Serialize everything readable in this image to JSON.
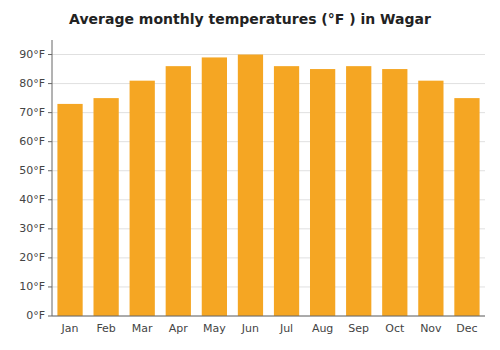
{
  "chart_data": {
    "type": "bar",
    "title": "Average monthly temperatures (°F ) in Wagar",
    "categories": [
      "Jan",
      "Feb",
      "Mar",
      "Apr",
      "May",
      "Jun",
      "Jul",
      "Aug",
      "Sep",
      "Oct",
      "Nov",
      "Dec"
    ],
    "values": [
      73,
      75,
      81,
      86,
      89,
      90,
      86,
      85,
      86,
      85,
      81,
      75
    ],
    "color": "#F5A623",
    "ylim": [
      0,
      95
    ],
    "yticks": [
      {
        "value": 0,
        "label": "0°F"
      },
      {
        "value": 10,
        "label": "10°F"
      },
      {
        "value": 20,
        "label": "20°F"
      },
      {
        "value": 30,
        "label": "30°F"
      },
      {
        "value": 40,
        "label": "40°F"
      },
      {
        "value": 50,
        "label": "50°F"
      },
      {
        "value": 60,
        "label": "60°F"
      },
      {
        "value": 70,
        "label": "70°F"
      },
      {
        "value": 80,
        "label": "80°F"
      },
      {
        "value": 90,
        "label": "90°F"
      }
    ],
    "grid": true
  }
}
